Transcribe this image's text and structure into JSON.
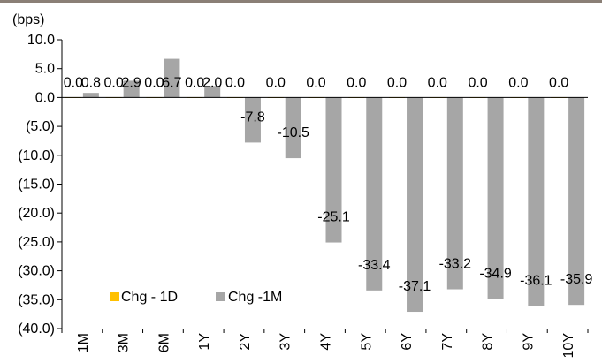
{
  "chart_data": {
    "type": "bar",
    "unit_label": "(bps)",
    "categories": [
      "1M",
      "3M",
      "6M",
      "1Y",
      "2Y",
      "3Y",
      "4Y",
      "5Y",
      "6Y",
      "7Y",
      "8Y",
      "9Y",
      "10Y"
    ],
    "series": [
      {
        "name": "Chg - 1D",
        "color": "#ffc000",
        "values": [
          0.0,
          0.0,
          0.0,
          0.0,
          0.0,
          0.0,
          0.0,
          0.0,
          0.0,
          0.0,
          0.0,
          0.0,
          0.0
        ]
      },
      {
        "name": "Chg -1M",
        "color": "#a6a6a6",
        "values": [
          0.8,
          2.9,
          6.7,
          2.0,
          -7.8,
          -10.5,
          -25.1,
          -33.4,
          -37.1,
          -33.2,
          -34.9,
          -36.1,
          -35.9
        ]
      }
    ],
    "data_labels": {
      "Chg - 1D": [
        "0.0",
        "0.0",
        "0.0",
        "0.0",
        "0.0",
        "0.0",
        "0.0",
        "0.0",
        "0.0",
        "0.0",
        "0.0",
        "0.0",
        "0.0"
      ],
      "Chg -1M": [
        "0.8",
        "2.9",
        "6.7",
        "2.0",
        "-7.8",
        "-10.5",
        "-25.1",
        "-33.4",
        "-37.1",
        "-33.2",
        "-34.9",
        "-36.1",
        "-35.9"
      ]
    },
    "ylim": [
      -40,
      10
    ],
    "yticks": [
      10,
      5,
      0,
      -5,
      -10,
      -15,
      -20,
      -25,
      -30,
      -35,
      -40
    ],
    "ytick_labels": [
      "10.0",
      "5.0",
      "0.0",
      "(5.0)",
      "(10.0)",
      "(15.0)",
      "(20.0)",
      "(25.0)",
      "(30.0)",
      "(35.0)",
      "(40.0)"
    ],
    "grid": false,
    "legend_position": "bottom-left"
  }
}
